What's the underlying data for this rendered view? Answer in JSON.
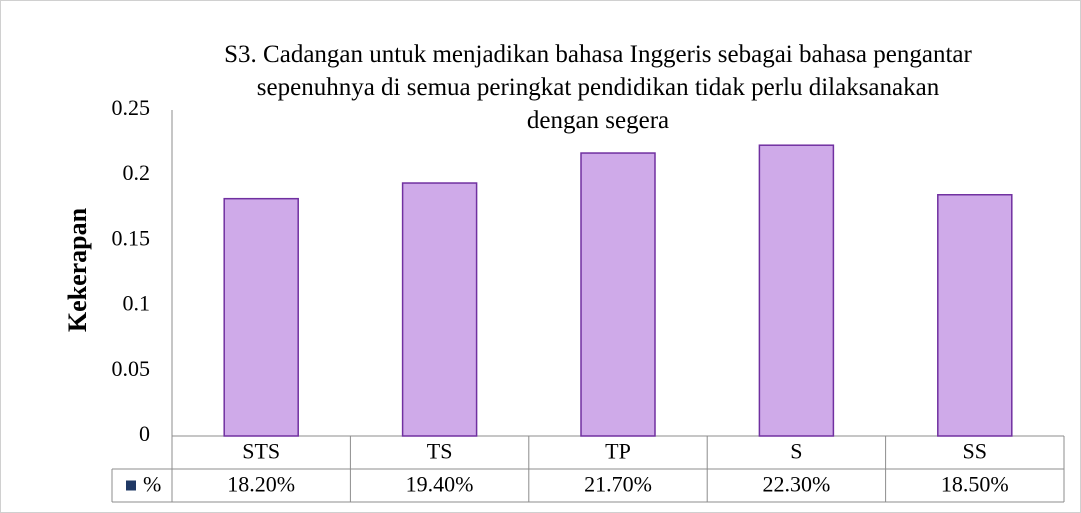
{
  "chart_data": {
    "type": "bar",
    "title": "S3. Cadangan untuk menjadikan bahasa Inggeris sebagai bahasa pengantar sepenuhnya di semua peringkat pendidikan tidak perlu dilaksanakan dengan segera",
    "y_label": "Kekerapan",
    "categories": [
      "STS",
      "TS",
      "TP",
      "S",
      "SS"
    ],
    "series": [
      {
        "name": "%",
        "color": "#cfaae9",
        "values": [
          0.182,
          0.194,
          0.217,
          0.223,
          0.185
        ],
        "value_labels": [
          "18.20%",
          "19.40%",
          "21.70%",
          "22.30%",
          "18.50%"
        ]
      }
    ],
    "ylim": [
      0,
      0.25
    ],
    "yticks": [
      0,
      0.05,
      0.1,
      0.15,
      0.2,
      0.25
    ],
    "grid": false
  }
}
